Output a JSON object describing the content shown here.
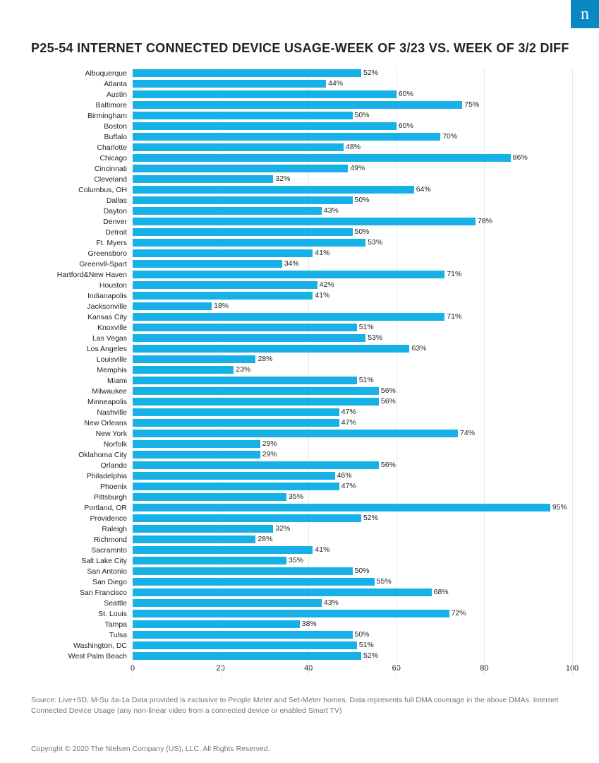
{
  "logo_letter": "n",
  "title": "P25-54 INTERNET CONNECTED DEVICE USAGE-WEEK OF 3/23 VS. WEEK OF 3/2 DIFF",
  "chart": {
    "type": "bar",
    "orientation": "horizontal",
    "bar_color": "#17b1e8",
    "background_color": "#ffffff",
    "grid_color": "#e8e8e8",
    "label_fontsize": 10.5,
    "value_fontsize": 10.5,
    "title_fontsize": 18,
    "xlim": [
      0,
      100
    ],
    "xtick_step": 20,
    "xticks": [
      0,
      20,
      40,
      60,
      80,
      100
    ],
    "value_suffix": "%",
    "series": [
      {
        "label": "Albuquerque",
        "value": 52
      },
      {
        "label": "Atlanta",
        "value": 44
      },
      {
        "label": "Austin",
        "value": 60
      },
      {
        "label": "Baltimore",
        "value": 75
      },
      {
        "label": "Birmingham",
        "value": 50
      },
      {
        "label": "Boston",
        "value": 60
      },
      {
        "label": "Buffalo",
        "value": 70
      },
      {
        "label": "Charlotte",
        "value": 48
      },
      {
        "label": "Chicago",
        "value": 86
      },
      {
        "label": "Cincinnati",
        "value": 49
      },
      {
        "label": "Cleveland",
        "value": 32
      },
      {
        "label": "Columbus, OH",
        "value": 64
      },
      {
        "label": "Dallas",
        "value": 50
      },
      {
        "label": "Dayton",
        "value": 43
      },
      {
        "label": "Denver",
        "value": 78
      },
      {
        "label": "Detroit",
        "value": 50
      },
      {
        "label": "Ft. Myers",
        "value": 53
      },
      {
        "label": "Greensboro",
        "value": 41
      },
      {
        "label": "Greenvll-Spart",
        "value": 34
      },
      {
        "label": "Hartford&New Haven",
        "value": 71
      },
      {
        "label": "Houston",
        "value": 42
      },
      {
        "label": "Indianapolis",
        "value": 41
      },
      {
        "label": "Jacksonville",
        "value": 18
      },
      {
        "label": "Kansas City",
        "value": 71
      },
      {
        "label": "Knoxville",
        "value": 51
      },
      {
        "label": "Las Vegas",
        "value": 53
      },
      {
        "label": "Los Angeles",
        "value": 63
      },
      {
        "label": "Louisville",
        "value": 28
      },
      {
        "label": "Memphis",
        "value": 23
      },
      {
        "label": "Miami",
        "value": 51
      },
      {
        "label": "Milwaukee",
        "value": 56
      },
      {
        "label": "Minneapolis",
        "value": 56
      },
      {
        "label": "Nashville",
        "value": 47
      },
      {
        "label": "New Orleans",
        "value": 47
      },
      {
        "label": "New York",
        "value": 74
      },
      {
        "label": "Norfolk",
        "value": 29
      },
      {
        "label": "Oklahoma City",
        "value": 29
      },
      {
        "label": "Orlando",
        "value": 56
      },
      {
        "label": "Philadelphia",
        "value": 46
      },
      {
        "label": "Phoenix",
        "value": 47
      },
      {
        "label": "Pittsburgh",
        "value": 35
      },
      {
        "label": "Portland, OR",
        "value": 95
      },
      {
        "label": "Providence",
        "value": 52
      },
      {
        "label": "Raleigh",
        "value": 32
      },
      {
        "label": "Richmond",
        "value": 28
      },
      {
        "label": "Sacramnto",
        "value": 41
      },
      {
        "label": "Salt Lake City",
        "value": 35
      },
      {
        "label": "San Antonio",
        "value": 50
      },
      {
        "label": "San Diego",
        "value": 55
      },
      {
        "label": "San Francisco",
        "value": 68
      },
      {
        "label": "Seattle",
        "value": 43
      },
      {
        "label": "St. Louis",
        "value": 72
      },
      {
        "label": "Tampa",
        "value": 38
      },
      {
        "label": "Tulsa",
        "value": 50
      },
      {
        "label": "Washington, DC",
        "value": 51
      },
      {
        "label": "West Palm Beach",
        "value": 52
      }
    ]
  },
  "source_text": "Source: Live+SD, M-Su 4a-1a Data provided is exclusive to People Meter and Set-Meter homes. Data represents full DMA coverage in the above DMAs. Internet Connected Device Usage (any non-linear video from a connected device or enabled Smart TV)",
  "copyright_text": "Copyright © 2020 The Nielsen Company (US), LLC. All Rights Reserved."
}
